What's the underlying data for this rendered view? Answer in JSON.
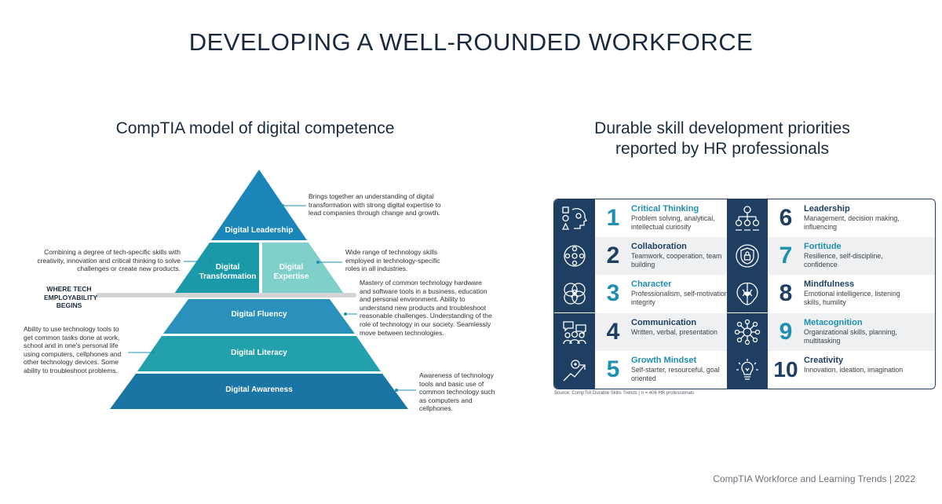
{
  "title": "DEVELOPING A WELL-ROUNDED WORKFORCE",
  "left": {
    "heading": "CompTIA model of digital competence",
    "levels": {
      "leadership": "Digital Leadership",
      "transformation": "Digital Transformation",
      "expertise": "Digital Expertise",
      "fluency": "Digital Fluency",
      "literacy": "Digital Literacy",
      "awareness": "Digital Awareness"
    },
    "tech_line_label": "WHERE TECH EMPLOYABILITY BEGINS",
    "notes": {
      "leadership": "Brings together an understanding of digital transformation with strong digital expertise to lead companies through change and growth.",
      "transformation": "Combining a degree of tech-specific skills with creativity, innovation and critical thinking to solve challenges or create new products.",
      "expertise": "Wide range of technology skills employed in technology-specific roles in all industries.",
      "fluency": "Mastery of common technology hardware and software tools in a business, education and personal environment. Ability to understand new products and troubleshoot reasonable challenges. Understanding of the role of technology in our society. Seamlessly move between technologies.",
      "literacy": "Ability to use technology tools to get common tasks done at work, school and in one's personal life using computers, cellphones and other technology devices. Some ability to troubleshoot problems.",
      "awareness": "Awareness of technology tools and basic use of common technology such as computers and cellphones."
    }
  },
  "right": {
    "heading_line1": "Durable skill development priorities",
    "heading_line2": "reported by HR professionals",
    "skills": [
      {
        "num": "1",
        "name": "Critical Thinking",
        "desc": "Problem solving, analytical, intellectual curiosity",
        "icon": "critical-thinking-icon"
      },
      {
        "num": "2",
        "name": "Collaboration",
        "desc": "Teamwork, cooperation, team building",
        "icon": "collaboration-icon"
      },
      {
        "num": "3",
        "name": "Character",
        "desc": "Professionalism, self-motivation, integrity",
        "icon": "character-icon"
      },
      {
        "num": "4",
        "name": "Communication",
        "desc": "Written, verbal, presentation",
        "icon": "communication-icon"
      },
      {
        "num": "5",
        "name": "Growth Mindset",
        "desc": "Self-starter, resourceful, goal oriented",
        "icon": "growth-mindset-icon"
      },
      {
        "num": "6",
        "name": "Leadership",
        "desc": "Management, decision making, influencing",
        "icon": "leadership-icon"
      },
      {
        "num": "7",
        "name": "Fortitude",
        "desc": "Resilience, self-discipline, confidence",
        "icon": "fortitude-icon"
      },
      {
        "num": "8",
        "name": "Mindfulness",
        "desc": "Emotional intelligence, listening skills, humility",
        "icon": "mindfulness-icon"
      },
      {
        "num": "9",
        "name": "Metacognition",
        "desc": "Organizational skills, planning, multitasking",
        "icon": "metacognition-icon"
      },
      {
        "num": "10",
        "name": "Creativity",
        "desc": "Innovation, ideation, imagination",
        "icon": "creativity-icon"
      }
    ],
    "source": "Source: CompTIA Durable Skills Trends | n = 406 HR professionals"
  },
  "footer": "CompTIA Workforce and Learning Trends | 2022",
  "colors": {
    "navy": "#1e3f62",
    "teal": "#1f8fb0",
    "pyr_leadership": "#1a86b8",
    "pyr_transformation": "#1a9aa8",
    "pyr_expertise": "#7fcfcb",
    "pyr_fluency": "#2a91bd",
    "pyr_literacy": "#22a0ab",
    "pyr_awareness": "#1a74a4",
    "row_alt": "#eef0f2"
  }
}
